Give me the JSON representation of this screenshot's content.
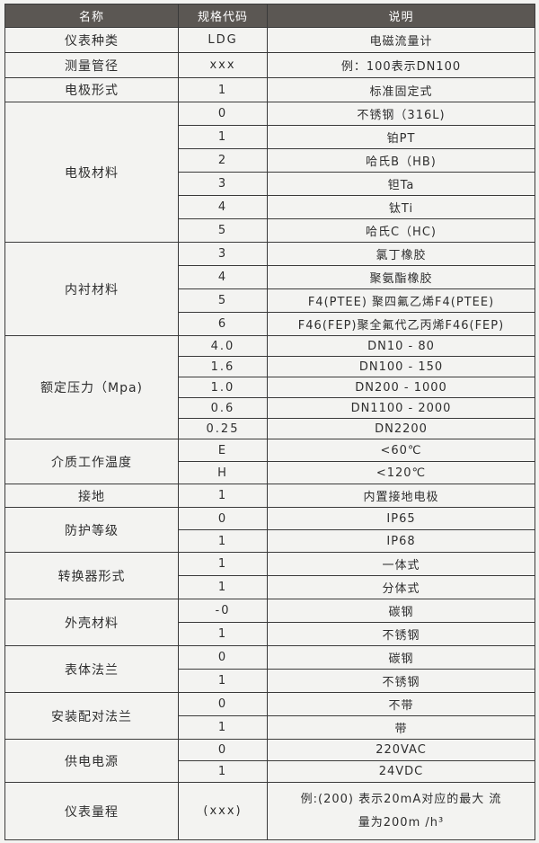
{
  "header": {
    "name": "名称",
    "code": "规格代码",
    "desc": "说明"
  },
  "groups": [
    {
      "name": "仪表种类",
      "rows": [
        {
          "code": "LDG",
          "desc": "电磁流量计"
        }
      ],
      "h": 28
    },
    {
      "name": "测量管径",
      "rows": [
        {
          "code": "xxx",
          "desc": "例：100表示DN100"
        }
      ],
      "h": 28
    },
    {
      "name": "电极形式",
      "rows": [
        {
          "code": "1",
          "desc": "标准固定式"
        }
      ],
      "h": 27
    },
    {
      "name": "电极材料",
      "rows": [
        {
          "code": "0",
          "desc": "不锈钢（316L)"
        },
        {
          "code": "1",
          "desc": "铂PT"
        },
        {
          "code": "2",
          "desc": "哈氏B（HB)"
        },
        {
          "code": "3",
          "desc": "钽Ta"
        },
        {
          "code": "4",
          "desc": "钛Ti"
        },
        {
          "code": "5",
          "desc": "哈氏C（HC)"
        }
      ],
      "h": 26
    },
    {
      "name": "内衬材料",
      "rows": [
        {
          "code": "3",
          "desc": "氯丁橡胶"
        },
        {
          "code": "4",
          "desc": "聚氨酯橡胶"
        },
        {
          "code": "5",
          "desc": "F4(PTEE) 聚四氟乙烯F4(PTEE)"
        },
        {
          "code": "6",
          "desc": "F46(FEP)聚全氟代乙丙烯F46(FEP)"
        }
      ],
      "h": 26
    },
    {
      "name": "额定压力（Mpa)",
      "rows": [
        {
          "code": "4.0",
          "desc": "DN10 - 80"
        },
        {
          "code": "1.6",
          "desc": "DN100 - 150"
        },
        {
          "code": "1.0",
          "desc": "DN200 - 1000"
        },
        {
          "code": "0.6",
          "desc": "DN1100 - 2000"
        },
        {
          "code": "0.25",
          "desc": "DN2200"
        }
      ],
      "h": 23
    },
    {
      "name": "介质工作温度",
      "rows": [
        {
          "code": "E",
          "desc": "<60℃"
        },
        {
          "code": "H",
          "desc": "<120℃"
        }
      ],
      "h": 25
    },
    {
      "name": "接地",
      "rows": [
        {
          "code": "1",
          "desc": "内置接地电极"
        }
      ],
      "h": 26
    },
    {
      "name": "防护等级",
      "rows": [
        {
          "code": "0",
          "desc": "IP65"
        },
        {
          "code": "1",
          "desc": "IP68"
        }
      ],
      "h": 25
    },
    {
      "name": "转换器形式",
      "rows": [
        {
          "code": "1",
          "desc": "一体式"
        },
        {
          "code": "1",
          "desc": "分体式"
        }
      ],
      "h": 26
    },
    {
      "name": "外壳材料",
      "rows": [
        {
          "code": "-0",
          "desc": "碳钢"
        },
        {
          "code": "1",
          "desc": "不锈钢"
        }
      ],
      "h": 26
    },
    {
      "name": "表体法兰",
      "rows": [
        {
          "code": "0",
          "desc": "碳钢"
        },
        {
          "code": "1",
          "desc": "不锈钢"
        }
      ],
      "h": 26
    },
    {
      "name": "安装配对法兰",
      "rows": [
        {
          "code": "0",
          "desc": "不带"
        },
        {
          "code": "1",
          "desc": "带"
        }
      ],
      "h": 26
    },
    {
      "name": "供电电源",
      "rows": [
        {
          "code": "0",
          "desc": "220VAC"
        },
        {
          "code": "1",
          "desc": "24VDC"
        }
      ],
      "h": 24
    },
    {
      "name": "仪表量程",
      "rows": [
        {
          "code": "(xxx)",
          "desc": "例:(200) 表示20mA对应的最大 流量为200m /h³"
        }
      ],
      "h": 64
    }
  ]
}
